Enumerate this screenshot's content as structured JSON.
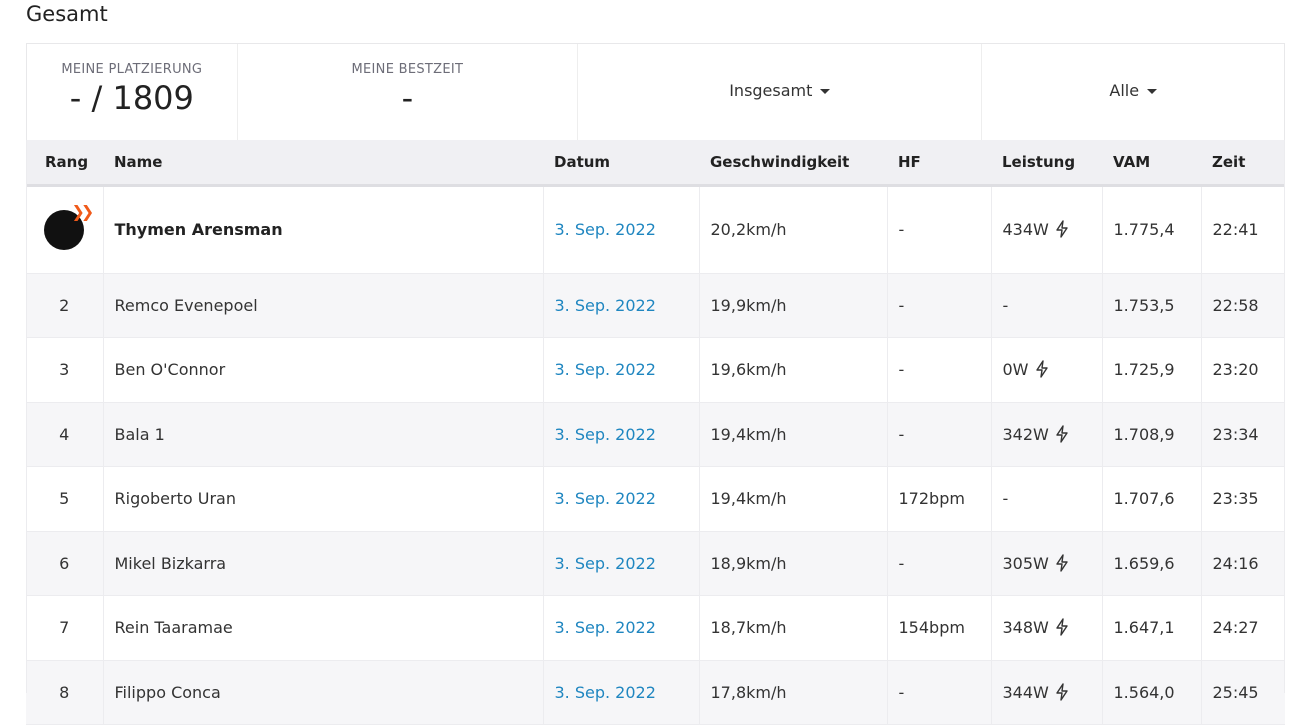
{
  "title": "Gesamt",
  "stats": {
    "placement_label": "MEINE PLATZIERUNG",
    "placement_value": "- / 1809",
    "best_label": "MEINE BESTZEIT",
    "best_value": "-",
    "filter1": "Insgesamt",
    "filter2": "Alle"
  },
  "columns": [
    "Rang",
    "Name",
    "Datum",
    "Geschwindigkeit",
    "HF",
    "Leistung",
    "VAM",
    "Zeit"
  ],
  "rows": [
    {
      "rank": "1",
      "name": "Thymen Arensman",
      "date": "3. Sep. 2022",
      "speed": "20,2km/h",
      "hr": "-",
      "power": "434W",
      "power_icon": true,
      "vam": "1.775,4",
      "time": "22:41"
    },
    {
      "rank": "2",
      "name": "Remco Evenepoel",
      "date": "3. Sep. 2022",
      "speed": "19,9km/h",
      "hr": "-",
      "power": "-",
      "power_icon": false,
      "vam": "1.753,5",
      "time": "22:58"
    },
    {
      "rank": "3",
      "name": "Ben O'Connor",
      "date": "3. Sep. 2022",
      "speed": "19,6km/h",
      "hr": "-",
      "power": "0W",
      "power_icon": true,
      "vam": "1.725,9",
      "time": "23:20"
    },
    {
      "rank": "4",
      "name": "Bala 1",
      "date": "3. Sep. 2022",
      "speed": "19,4km/h",
      "hr": "-",
      "power": "342W",
      "power_icon": true,
      "vam": "1.708,9",
      "time": "23:34"
    },
    {
      "rank": "5",
      "name": "Rigoberto Uran",
      "date": "3. Sep. 2022",
      "speed": "19,4km/h",
      "hr": "172bpm",
      "power": "-",
      "power_icon": false,
      "vam": "1.707,6",
      "time": "23:35"
    },
    {
      "rank": "6",
      "name": "Mikel Bizkarra",
      "date": "3. Sep. 2022",
      "speed": "18,9km/h",
      "hr": "-",
      "power": "305W",
      "power_icon": true,
      "vam": "1.659,6",
      "time": "24:16"
    },
    {
      "rank": "7",
      "name": "Rein Taaramae",
      "date": "3. Sep. 2022",
      "speed": "18,7km/h",
      "hr": "154bpm",
      "power": "348W",
      "power_icon": true,
      "vam": "1.647,1",
      "time": "24:27"
    },
    {
      "rank": "8",
      "name": "Filippo Conca",
      "date": "3. Sep. 2022",
      "speed": "17,8km/h",
      "hr": "-",
      "power": "344W",
      "power_icon": true,
      "vam": "1.564,0",
      "time": "25:45"
    }
  ],
  "colors": {
    "link": "#1f86c0",
    "crown": "#f05a1a",
    "header_bg": "#f0f0f3"
  }
}
